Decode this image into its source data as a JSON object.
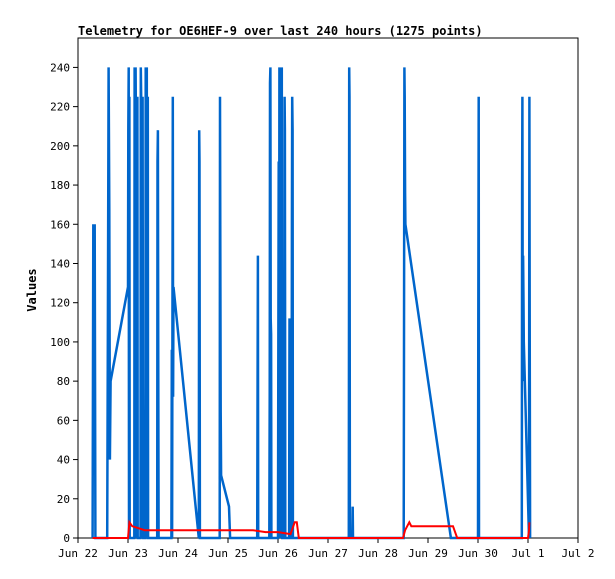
{
  "chart_data": {
    "type": "line",
    "title": "Telemetry for OE6HEF-9 over last 240 hours (1275 points)",
    "xlabel": "",
    "ylabel": "Values",
    "ylim": [
      0,
      255
    ],
    "xlim": [
      "2024-06-22T00:00",
      "2024-07-02T00:00"
    ],
    "y_ticks": [
      0,
      20,
      40,
      60,
      80,
      100,
      120,
      140,
      160,
      180,
      200,
      220,
      240
    ],
    "x_ticks": [
      {
        "label": "Jun 22",
        "t": "2024-06-22T00:00"
      },
      {
        "label": "Jun 23",
        "t": "2024-06-23T00:00"
      },
      {
        "label": "Jun 24",
        "t": "2024-06-24T00:00"
      },
      {
        "label": "Jun 25",
        "t": "2024-06-25T00:00"
      },
      {
        "label": "Jun 26",
        "t": "2024-06-26T00:00"
      },
      {
        "label": "Jun 27",
        "t": "2024-06-27T00:00"
      },
      {
        "label": "Jun 28",
        "t": "2024-06-28T00:00"
      },
      {
        "label": "Jun 29",
        "t": "2024-06-29T00:00"
      },
      {
        "label": "Jun 30",
        "t": "2024-06-30T00:00"
      },
      {
        "label": "Jul 1",
        "t": "2024-07-01T00:00"
      },
      {
        "label": "Jul 2",
        "t": "2024-07-02T00:00"
      }
    ],
    "grid": false,
    "legend": "none",
    "series": [
      {
        "color": "#0066cc",
        "points": [
          [
            "2024-06-22T07:00",
            0
          ],
          [
            "2024-06-22T07:20",
            160
          ],
          [
            "2024-06-22T07:40",
            112
          ],
          [
            "2024-06-22T08:00",
            160
          ],
          [
            "2024-06-22T08:20",
            0
          ],
          [
            "2024-06-22T14:00",
            0
          ],
          [
            "2024-06-22T14:20",
            112
          ],
          [
            "2024-06-22T14:40",
            240
          ],
          [
            "2024-06-22T15:00",
            168
          ],
          [
            "2024-06-22T15:20",
            40
          ],
          [
            "2024-06-22T15:40",
            80
          ],
          [
            "2024-06-23T00:00",
            128
          ],
          [
            "2024-06-23T00:10",
            208
          ],
          [
            "2024-06-23T00:20",
            240
          ],
          [
            "2024-06-23T00:30",
            0
          ],
          [
            "2024-06-23T00:40",
            225
          ],
          [
            "2024-06-23T00:50",
            0
          ],
          [
            "2024-06-23T03:00",
            0
          ],
          [
            "2024-06-23T03:10",
            240
          ],
          [
            "2024-06-23T03:20",
            0
          ],
          [
            "2024-06-23T03:40",
            240
          ],
          [
            "2024-06-23T04:00",
            176
          ],
          [
            "2024-06-23T04:10",
            0
          ],
          [
            "2024-06-23T04:30",
            225
          ],
          [
            "2024-06-23T04:40",
            0
          ],
          [
            "2024-06-23T06:00",
            0
          ],
          [
            "2024-06-23T06:10",
            240
          ],
          [
            "2024-06-23T06:20",
            224
          ],
          [
            "2024-06-23T06:30",
            144
          ],
          [
            "2024-06-23T06:40",
            0
          ],
          [
            "2024-06-23T07:00",
            225
          ],
          [
            "2024-06-23T07:10",
            80
          ],
          [
            "2024-06-23T07:20",
            0
          ],
          [
            "2024-06-23T08:20",
            0
          ],
          [
            "2024-06-23T08:30",
            240
          ],
          [
            "2024-06-23T08:40",
            0
          ],
          [
            "2024-06-23T09:00",
            240
          ],
          [
            "2024-06-23T09:10",
            0
          ],
          [
            "2024-06-23T09:30",
            225
          ],
          [
            "2024-06-23T09:40",
            0
          ],
          [
            "2024-06-23T12:00",
            0
          ],
          [
            "2024-06-23T14:00",
            0
          ],
          [
            "2024-06-23T14:10",
            192
          ],
          [
            "2024-06-23T14:20",
            208
          ],
          [
            "2024-06-23T14:30",
            104
          ],
          [
            "2024-06-23T14:40",
            0
          ],
          [
            "2024-06-23T20:50",
            0
          ],
          [
            "2024-06-23T21:00",
            96
          ],
          [
            "2024-06-23T21:10",
            0
          ],
          [
            "2024-06-23T21:30",
            225
          ],
          [
            "2024-06-23T21:40",
            72
          ],
          [
            "2024-06-23T21:50",
            128
          ],
          [
            "2024-06-24T10:00",
            0
          ],
          [
            "2024-06-24T10:10",
            208
          ],
          [
            "2024-06-24T10:20",
            192
          ],
          [
            "2024-06-24T10:30",
            0
          ],
          [
            "2024-06-24T20:00",
            0
          ],
          [
            "2024-06-24T20:10",
            225
          ],
          [
            "2024-06-24T20:20",
            128
          ],
          [
            "2024-06-24T20:30",
            64
          ],
          [
            "2024-06-24T20:40",
            32
          ],
          [
            "2024-06-25T00:30",
            16
          ],
          [
            "2024-06-25T01:00",
            0
          ],
          [
            "2024-06-25T14:00",
            0
          ],
          [
            "2024-06-25T14:10",
            64
          ],
          [
            "2024-06-25T14:20",
            144
          ],
          [
            "2024-06-25T14:30",
            0
          ],
          [
            "2024-06-25T19:50",
            0
          ],
          [
            "2024-06-25T20:00",
            72
          ],
          [
            "2024-06-25T20:10",
            232
          ],
          [
            "2024-06-25T20:20",
            240
          ],
          [
            "2024-06-25T20:30",
            112
          ],
          [
            "2024-06-25T20:40",
            104
          ],
          [
            "2024-06-25T20:50",
            0
          ],
          [
            "2024-06-26T00:00",
            0
          ],
          [
            "2024-06-26T00:10",
            88
          ],
          [
            "2024-06-26T00:20",
            192
          ],
          [
            "2024-06-26T00:30",
            0
          ],
          [
            "2024-06-26T00:40",
            240
          ],
          [
            "2024-06-26T00:50",
            0
          ],
          [
            "2024-06-26T01:00",
            128
          ],
          [
            "2024-06-26T01:10",
            0
          ],
          [
            "2024-06-26T01:20",
            200
          ],
          [
            "2024-06-26T01:30",
            0
          ],
          [
            "2024-06-26T01:50",
            240
          ],
          [
            "2024-06-26T02:00",
            0
          ],
          [
            "2024-06-26T03:00",
            0
          ],
          [
            "2024-06-26T03:10",
            225
          ],
          [
            "2024-06-26T03:20",
            208
          ],
          [
            "2024-06-26T03:30",
            0
          ],
          [
            "2024-06-26T03:40",
            0
          ],
          [
            "2024-06-26T05:20",
            0
          ],
          [
            "2024-06-26T05:30",
            112
          ],
          [
            "2024-06-26T05:40",
            0
          ],
          [
            "2024-06-26T06:30",
            0
          ],
          [
            "2024-06-26T06:40",
            160
          ],
          [
            "2024-06-26T06:50",
            225
          ],
          [
            "2024-06-26T07:00",
            208
          ],
          [
            "2024-06-26T07:10",
            0
          ],
          [
            "2024-06-26T07:30",
            0
          ],
          [
            "2024-06-26T08:00",
            0
          ],
          [
            "2024-06-27T10:00",
            0
          ],
          [
            "2024-06-27T10:10",
            240
          ],
          [
            "2024-06-27T10:20",
            225
          ],
          [
            "2024-06-27T10:30",
            0
          ],
          [
            "2024-06-27T11:40",
            0
          ],
          [
            "2024-06-27T11:50",
            16
          ],
          [
            "2024-06-27T12:00",
            0
          ],
          [
            "2024-06-28T12:00",
            0
          ],
          [
            "2024-06-28T12:20",
            0
          ],
          [
            "2024-06-28T12:30",
            96
          ],
          [
            "2024-06-28T12:40",
            240
          ],
          [
            "2024-06-28T12:50",
            225
          ],
          [
            "2024-06-28T13:00",
            176
          ],
          [
            "2024-06-28T13:10",
            160
          ],
          [
            "2024-06-29T11:00",
            0
          ],
          [
            "2024-06-30T00:00",
            0
          ],
          [
            "2024-06-30T00:10",
            112
          ],
          [
            "2024-06-30T00:20",
            225
          ],
          [
            "2024-06-30T00:30",
            0
          ],
          [
            "2024-06-30T21:00",
            0
          ],
          [
            "2024-06-30T21:10",
            176
          ],
          [
            "2024-06-30T21:20",
            225
          ],
          [
            "2024-06-30T21:30",
            80
          ],
          [
            "2024-06-30T21:40",
            144
          ],
          [
            "2024-06-30T21:50",
            120
          ],
          [
            "2024-06-30T22:00",
            100
          ],
          [
            "2024-07-01T00:30",
            0
          ],
          [
            "2024-07-01T00:40",
            225
          ],
          [
            "2024-07-01T00:50",
            112
          ],
          [
            "2024-07-01T01:00",
            0
          ]
        ]
      },
      {
        "color": "#ff0000",
        "points": [
          [
            "2024-06-22T07:00",
            0
          ],
          [
            "2024-06-22T08:00",
            0
          ],
          [
            "2024-06-22T14:00",
            0
          ],
          [
            "2024-06-22T20:00",
            0
          ],
          [
            "2024-06-23T00:00",
            0
          ],
          [
            "2024-06-23T00:40",
            8
          ],
          [
            "2024-06-23T02:00",
            6
          ],
          [
            "2024-06-23T08:00",
            4
          ],
          [
            "2024-06-23T12:00",
            4
          ],
          [
            "2024-06-24T00:00",
            4
          ],
          [
            "2024-06-24T12:00",
            4
          ],
          [
            "2024-06-25T00:00",
            4
          ],
          [
            "2024-06-25T12:00",
            4
          ],
          [
            "2024-06-25T18:00",
            3
          ],
          [
            "2024-06-26T00:00",
            3
          ],
          [
            "2024-06-26T06:00",
            2
          ],
          [
            "2024-06-26T08:00",
            8
          ],
          [
            "2024-06-26T09:00",
            8
          ],
          [
            "2024-06-26T10:00",
            0
          ],
          [
            "2024-06-27T10:00",
            0
          ],
          [
            "2024-06-27T12:00",
            0
          ],
          [
            "2024-06-28T12:00",
            0
          ],
          [
            "2024-06-28T13:00",
            4
          ],
          [
            "2024-06-28T14:00",
            6
          ],
          [
            "2024-06-28T15:00",
            8
          ],
          [
            "2024-06-28T16:00",
            6
          ],
          [
            "2024-06-29T00:00",
            6
          ],
          [
            "2024-06-29T12:00",
            6
          ],
          [
            "2024-06-29T14:00",
            0
          ],
          [
            "2024-06-30T00:00",
            0
          ],
          [
            "2024-06-30T21:00",
            0
          ],
          [
            "2024-07-01T00:00",
            0
          ],
          [
            "2024-07-01T00:30",
            4
          ],
          [
            "2024-07-01T00:40",
            8
          ]
        ]
      }
    ]
  }
}
